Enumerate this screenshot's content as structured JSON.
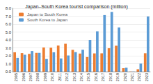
{
  "chart_data": {
    "type": "bar",
    "title": "Japan–South Korea tourist comparison (million)",
    "categories": [
      "2005",
      "2006",
      "2007",
      "2008",
      "2009",
      "2010",
      "2011",
      "2012",
      "2013",
      "2014",
      "2015",
      "2016",
      "2017",
      "2018",
      "2019",
      "2020",
      "2021",
      "2022",
      "2023"
    ],
    "series": [
      {
        "name": "Japan to South Korea",
        "color": "#ed7d31",
        "values": [
          2.44,
          2.34,
          2.24,
          2.38,
          3.05,
          3.02,
          3.29,
          3.52,
          2.75,
          2.28,
          1.84,
          2.3,
          2.31,
          2.95,
          3.27,
          0.43,
          0.02,
          0.3,
          2.32
        ]
      },
      {
        "name": "South Korea to Japan",
        "color": "#5b9bd5",
        "values": [
          1.75,
          2.12,
          2.6,
          2.38,
          1.59,
          2.44,
          1.66,
          2.04,
          2.46,
          2.76,
          4.0,
          5.09,
          7.14,
          7.54,
          5.58,
          0.49,
          0.02,
          1.01,
          6.96
        ]
      }
    ],
    "ylim": [
      0,
      8
    ],
    "yticks": [
      {
        "value": 0,
        "label": "0.0"
      },
      {
        "value": 1,
        "label": "1.0"
      },
      {
        "value": 2,
        "label": "2.0"
      },
      {
        "value": 3,
        "label": "3.0"
      },
      {
        "value": 4,
        "label": "4.0"
      },
      {
        "value": 5,
        "label": "5.0"
      },
      {
        "value": 6,
        "label": "6.0"
      },
      {
        "value": 7,
        "label": "7.0"
      },
      {
        "value": 8,
        "label": "8.0"
      }
    ],
    "grid": true,
    "legend": "upper left"
  }
}
